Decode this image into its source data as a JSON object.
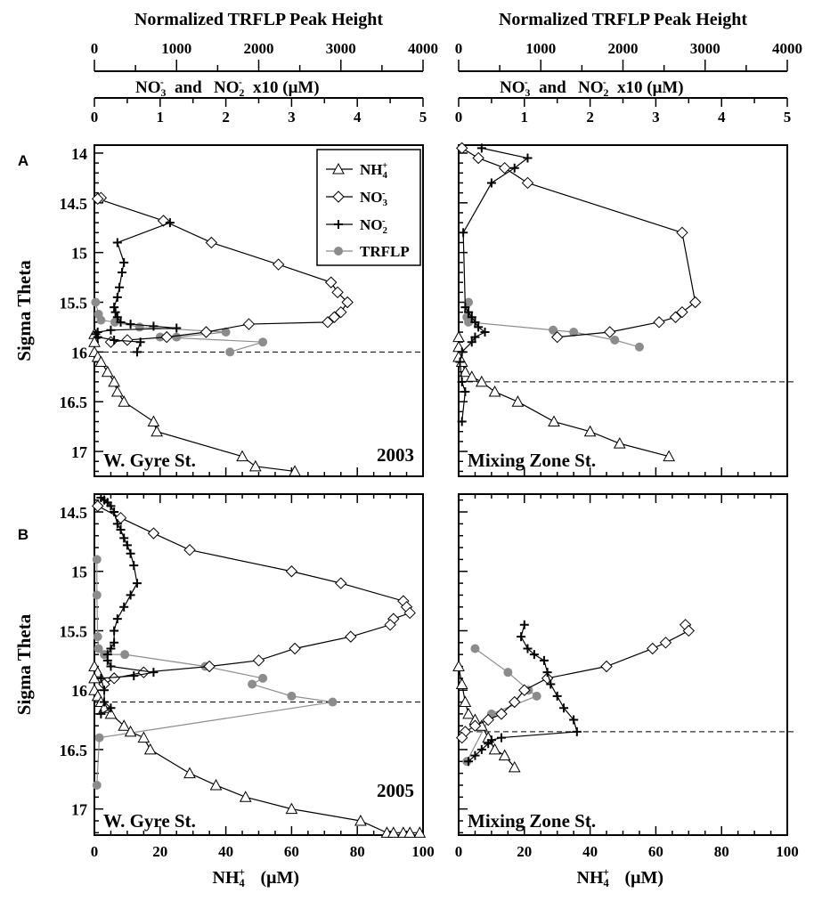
{
  "figure": {
    "top_axis_label": "Normalized TRFLP Peak Height",
    "top_ticks": [
      "0",
      "1000",
      "2000",
      "3000",
      "4000"
    ],
    "top_range": [
      0,
      4000
    ],
    "second_axis_label": "NO<sub>3</sub><sup>-</sup> and NO<sub>2</sub><sup>-</sup> x10 (μM)",
    "second_ticks": [
      "0",
      "1",
      "2",
      "3",
      "4",
      "5"
    ],
    "second_range": [
      0,
      5
    ],
    "bottom_axis_label": "NH<sub>4</sub><sup>+</sup> (μM)",
    "bottom_ticks": [
      "0",
      "20",
      "40",
      "60",
      "80",
      "100"
    ],
    "bottom_range": [
      0,
      100
    ],
    "y_axis_label": "Sigma Theta",
    "row_labels": [
      "A",
      "B"
    ],
    "year_labels": [
      "2003",
      "2005"
    ],
    "legend": [
      "NH4+",
      "NO3-",
      "NO2-",
      "TRFLP"
    ],
    "colors": {
      "trflp": "#8c8c8c",
      "black": "#000000"
    }
  },
  "chart_data": [
    {
      "type": "line",
      "panel": "A-left",
      "station": "W. Gyre St.",
      "year": "2003",
      "ylim": [
        17.25,
        13.92
      ],
      "y_ticks": [
        "14",
        "14.5",
        "15",
        "15.5",
        "16",
        "16.5",
        "17"
      ],
      "boundary": 16.0,
      "series": [
        {
          "name": "NH4+",
          "axis": "nh4",
          "x": [
            0,
            0,
            0,
            1,
            2,
            4,
            6,
            7,
            9,
            18,
            19,
            45,
            49,
            61
          ],
          "y": [
            15.82,
            15.9,
            16.0,
            16.05,
            16.1,
            16.2,
            16.3,
            16.4,
            16.5,
            16.7,
            16.8,
            17.05,
            17.15,
            17.2
          ]
        },
        {
          "name": "NO3-",
          "axis": "no3",
          "x": [
            0.1,
            0.05,
            1.05,
            1.78,
            2.8,
            3.6,
            3.7,
            3.85,
            3.75,
            3.65,
            3.55,
            2.35,
            1.7,
            1.1,
            0.5,
            0.25
          ],
          "y": [
            14.45,
            14.46,
            14.68,
            14.9,
            15.12,
            15.3,
            15.4,
            15.5,
            15.6,
            15.65,
            15.7,
            15.72,
            15.8,
            15.85,
            15.88,
            15.9
          ]
        },
        {
          "name": "NO2-",
          "axis": "no2",
          "x": [
            1.15,
            0.35,
            0.45,
            0.42,
            0.38,
            0.35,
            0.3,
            0.32,
            0.35,
            0.4,
            0.55,
            0.9,
            1.25,
            0.25,
            0.05,
            0.02,
            0.05,
            0.3,
            0.7,
            0.65
          ],
          "y": [
            14.7,
            14.9,
            15.1,
            15.2,
            15.35,
            15.45,
            15.55,
            15.6,
            15.65,
            15.7,
            15.72,
            15.74,
            15.76,
            15.78,
            15.8,
            15.82,
            15.85,
            15.88,
            15.9,
            16.0
          ]
        },
        {
          "name": "TRFLP",
          "axis": "trflp",
          "x": [
            15,
            50,
            80,
            250,
            550,
            1600,
            1000,
            800,
            2050,
            1650
          ],
          "y": [
            15.5,
            15.62,
            15.68,
            15.7,
            15.75,
            15.8,
            15.85,
            15.85,
            15.9,
            16.0
          ]
        }
      ]
    },
    {
      "type": "line",
      "panel": "A-right",
      "station": "Mixing Zone St.",
      "year": "",
      "ylim": [
        17.25,
        13.92
      ],
      "y_ticks": [],
      "boundary": 16.3,
      "series": [
        {
          "name": "NH4+",
          "axis": "nh4",
          "x": [
            0,
            0,
            0,
            1,
            2,
            4,
            7,
            11,
            18,
            29,
            40,
            49,
            64
          ],
          "y": [
            15.85,
            15.95,
            16.05,
            16.1,
            16.2,
            16.25,
            16.3,
            16.4,
            16.5,
            16.7,
            16.8,
            16.92,
            17.05
          ]
        },
        {
          "name": "NO3-",
          "axis": "no3",
          "x": [
            0.05,
            0.3,
            0.7,
            1.05,
            3.4,
            3.6,
            3.4,
            3.3,
            3.05,
            2.3,
            1.5
          ],
          "y": [
            13.95,
            14.05,
            14.15,
            14.3,
            14.8,
            15.5,
            15.6,
            15.65,
            15.7,
            15.8,
            15.85
          ]
        },
        {
          "name": "NO2-",
          "axis": "no2",
          "x": [
            0.35,
            1.05,
            0.85,
            0.5,
            0.07,
            0.1,
            0.15,
            0.2,
            0.25,
            0.3,
            0.4,
            0.25,
            0.2,
            0.05,
            0.02,
            0.05,
            0.1,
            0.05
          ],
          "y": [
            13.95,
            14.05,
            14.15,
            14.3,
            14.8,
            15.55,
            15.6,
            15.65,
            15.7,
            15.75,
            15.8,
            15.85,
            15.9,
            16.0,
            16.1,
            16.3,
            16.4,
            16.7
          ]
        },
        {
          "name": "TRFLP",
          "axis": "trflp",
          "x": [
            120,
            100,
            120,
            1150,
            1400,
            1900,
            2200
          ],
          "y": [
            15.5,
            15.65,
            15.7,
            15.78,
            15.8,
            15.88,
            15.95
          ]
        }
      ]
    },
    {
      "type": "line",
      "panel": "B-left",
      "station": "W. Gyre St.",
      "year": "2005",
      "ylim": [
        17.22,
        14.35
      ],
      "y_ticks": [
        "14.5",
        "15",
        "15.5",
        "16",
        "16.5",
        "17"
      ],
      "boundary": 16.1,
      "series": [
        {
          "name": "NH4+",
          "axis": "nh4",
          "x": [
            0,
            1,
            0,
            0,
            1,
            2,
            3,
            5,
            9,
            11,
            15,
            17,
            29,
            37,
            46,
            60,
            81,
            89,
            91,
            94,
            96,
            99
          ],
          "y": [
            15.8,
            15.85,
            15.9,
            16.0,
            16.05,
            16.1,
            16.15,
            16.2,
            16.3,
            16.35,
            16.4,
            16.5,
            16.7,
            16.8,
            16.9,
            17.0,
            17.1,
            17.2,
            17.2,
            17.2,
            17.2,
            17.2
          ]
        },
        {
          "name": "NO3-",
          "axis": "no3",
          "x": [
            0.05,
            0.4,
            0.9,
            1.45,
            3.0,
            3.75,
            4.7,
            4.75,
            4.8,
            4.55,
            4.5,
            3.9,
            3.05,
            2.5,
            1.75,
            0.75,
            0.3,
            0.15
          ],
          "y": [
            14.45,
            14.55,
            14.68,
            14.82,
            15.0,
            15.1,
            15.25,
            15.3,
            15.35,
            15.4,
            15.45,
            15.55,
            15.65,
            15.75,
            15.8,
            15.85,
            15.9,
            15.95
          ]
        },
        {
          "name": "NO2-",
          "axis": "no2",
          "x": [
            0.1,
            0.15,
            0.2,
            0.25,
            0.3,
            0.35,
            0.4,
            0.45,
            0.5,
            0.55,
            0.6,
            0.65,
            0.55,
            0.45,
            0.35,
            0.3,
            0.3,
            0.25,
            0.2,
            0.2,
            0.25,
            0.9,
            0.6,
            0.1,
            0.15,
            0.15,
            0.25,
            0.1
          ],
          "y": [
            14.38,
            14.4,
            14.42,
            14.45,
            14.5,
            14.6,
            14.65,
            14.72,
            14.78,
            14.85,
            14.95,
            15.1,
            15.2,
            15.3,
            15.4,
            15.5,
            15.6,
            15.65,
            15.7,
            15.75,
            15.8,
            15.85,
            15.88,
            15.9,
            16.0,
            16.1,
            16.15,
            16.2
          ]
        },
        {
          "name": "TRFLP",
          "axis": "trflp",
          "x": [
            30,
            30,
            40,
            50,
            120,
            370,
            1350,
            2050,
            1920,
            2400,
            2900,
            60,
            30
          ],
          "y": [
            14.9,
            15.2,
            15.55,
            15.65,
            15.7,
            15.7,
            15.8,
            15.9,
            15.95,
            16.05,
            16.1,
            16.4,
            16.8
          ]
        }
      ]
    },
    {
      "type": "line",
      "panel": "B-right",
      "station": "Mixing Zone St.",
      "year": "",
      "ylim": [
        17.22,
        14.35
      ],
      "y_ticks": [],
      "boundary": 16.35,
      "series": [
        {
          "name": "NH4+",
          "axis": "nh4",
          "x": [
            0,
            1,
            2,
            3,
            5,
            7,
            9,
            11,
            14,
            17
          ],
          "y": [
            15.8,
            15.95,
            16.1,
            16.2,
            16.25,
            16.3,
            16.4,
            16.5,
            16.55,
            16.65
          ]
        },
        {
          "name": "NO3-",
          "axis": "no3",
          "x": [
            3.45,
            3.5,
            3.15,
            2.95,
            2.25,
            1.35,
            1.0,
            0.85,
            0.65,
            0.45,
            0.25,
            0.1,
            0.05
          ],
          "y": [
            15.45,
            15.5,
            15.6,
            15.65,
            15.8,
            15.9,
            16.0,
            16.1,
            16.2,
            16.25,
            16.3,
            16.35,
            16.4
          ]
        },
        {
          "name": "NO2-",
          "axis": "no2",
          "x": [
            1.0,
            0.95,
            1.05,
            1.15,
            1.3,
            1.35,
            1.4,
            1.5,
            1.6,
            1.75,
            1.8,
            0.65,
            0.5,
            0.45,
            0.35,
            0.25,
            0.15
          ],
          "y": [
            15.45,
            15.55,
            15.65,
            15.7,
            15.75,
            15.85,
            15.95,
            16.05,
            16.15,
            16.25,
            16.35,
            16.4,
            16.42,
            16.45,
            16.5,
            16.55,
            16.6
          ]
        },
        {
          "name": "TRFLP",
          "axis": "trflp",
          "x": [
            200,
            600,
            850,
            950,
            400,
            100
          ],
          "y": [
            15.65,
            15.85,
            16.0,
            16.05,
            16.2,
            16.6
          ]
        }
      ]
    }
  ]
}
